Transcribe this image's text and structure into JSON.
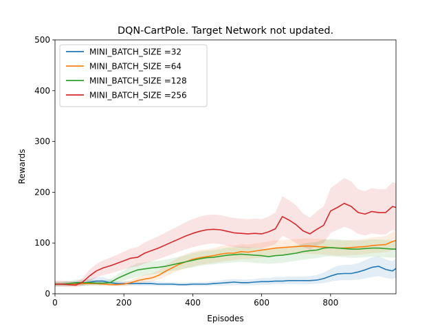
{
  "chart_data": {
    "type": "line",
    "title": "DQN-CartPole. Target Network not updated.",
    "xlabel": "Episodes",
    "ylabel": "Rewards",
    "xlim": [
      0,
      990
    ],
    "ylim": [
      0,
      500
    ],
    "xticks": [
      0,
      200,
      400,
      600,
      800
    ],
    "yticks": [
      0,
      100,
      200,
      300,
      400,
      500
    ],
    "grid": false,
    "legend_position": "upper-left",
    "x": [
      0,
      20,
      40,
      60,
      80,
      100,
      120,
      140,
      160,
      180,
      200,
      220,
      240,
      260,
      280,
      300,
      320,
      340,
      360,
      380,
      400,
      420,
      440,
      460,
      480,
      500,
      520,
      540,
      560,
      580,
      600,
      620,
      640,
      660,
      680,
      700,
      720,
      740,
      760,
      780,
      800,
      820,
      840,
      860,
      880,
      900,
      920,
      940,
      960,
      980,
      990
    ],
    "series": [
      {
        "name": "MINI_BATCH_SIZE =32",
        "color": "#1f77b4",
        "values": [
          19,
          19,
          19,
          20,
          21,
          23,
          25,
          25,
          22,
          20,
          20,
          20,
          20,
          20,
          20,
          19,
          19,
          19,
          18,
          18,
          19,
          19,
          19,
          20,
          21,
          22,
          23,
          22,
          22,
          23,
          24,
          24,
          25,
          25,
          26,
          26,
          26,
          26,
          27,
          30,
          35,
          39,
          40,
          40,
          43,
          47,
          52,
          54,
          48,
          45,
          50
        ],
        "lower": [
          15,
          15,
          15,
          15,
          16,
          17,
          18,
          18,
          17,
          16,
          16,
          16,
          16,
          16,
          16,
          15,
          15,
          15,
          15,
          15,
          15,
          15,
          15,
          16,
          16,
          17,
          17,
          17,
          17,
          17,
          18,
          18,
          19,
          19,
          19,
          19,
          19,
          19,
          20,
          21,
          24,
          26,
          27,
          27,
          28,
          30,
          33,
          35,
          31,
          29,
          32
        ],
        "upper": [
          24,
          24,
          24,
          25,
          26,
          29,
          33,
          33,
          28,
          25,
          25,
          25,
          25,
          25,
          25,
          24,
          23,
          23,
          22,
          22,
          23,
          23,
          23,
          25,
          26,
          28,
          29,
          28,
          28,
          29,
          31,
          31,
          33,
          33,
          34,
          34,
          34,
          35,
          37,
          42,
          49,
          55,
          57,
          57,
          60,
          66,
          72,
          74,
          68,
          64,
          70
        ]
      },
      {
        "name": "MINI_BATCH_SIZE =64",
        "color": "#ff7f0e",
        "values": [
          19,
          19,
          19,
          19,
          20,
          20,
          20,
          19,
          18,
          18,
          19,
          22,
          26,
          29,
          31,
          36,
          44,
          51,
          58,
          63,
          68,
          71,
          73,
          75,
          78,
          80,
          80,
          83,
          82,
          84,
          86,
          88,
          90,
          91,
          92,
          93,
          94,
          94,
          93,
          92,
          91,
          90,
          90,
          91,
          92,
          93,
          95,
          96,
          97,
          103,
          105
        ],
        "lower": [
          15,
          15,
          15,
          15,
          16,
          16,
          16,
          15,
          15,
          15,
          15,
          17,
          20,
          22,
          24,
          28,
          34,
          40,
          46,
          50,
          54,
          57,
          59,
          61,
          63,
          65,
          66,
          68,
          68,
          70,
          71,
          73,
          75,
          76,
          77,
          78,
          79,
          79,
          78,
          77,
          76,
          75,
          75,
          76,
          77,
          78,
          80,
          81,
          82,
          86,
          88
        ],
        "upper": [
          23,
          23,
          23,
          23,
          24,
          24,
          24,
          23,
          22,
          22,
          24,
          27,
          33,
          37,
          40,
          46,
          56,
          64,
          72,
          78,
          83,
          86,
          88,
          90,
          94,
          96,
          95,
          98,
          97,
          99,
          101,
          103,
          105,
          106,
          107,
          108,
          109,
          109,
          108,
          107,
          106,
          105,
          105,
          106,
          107,
          108,
          111,
          112,
          114,
          122,
          126
        ]
      },
      {
        "name": "MINI_BATCH_SIZE =128",
        "color": "#2ca02c",
        "values": [
          19,
          19,
          20,
          22,
          22,
          22,
          21,
          21,
          22,
          30,
          36,
          42,
          47,
          49,
          51,
          52,
          54,
          57,
          60,
          63,
          66,
          69,
          71,
          72,
          74,
          76,
          77,
          78,
          77,
          76,
          75,
          73,
          75,
          76,
          78,
          80,
          83,
          85,
          86,
          90,
          91,
          90,
          89,
          88,
          88,
          89,
          90,
          90,
          89,
          88,
          88
        ],
        "lower": [
          15,
          15,
          16,
          17,
          17,
          17,
          17,
          17,
          18,
          22,
          26,
          30,
          34,
          36,
          38,
          40,
          42,
          45,
          47,
          50,
          52,
          55,
          57,
          58,
          60,
          61,
          62,
          63,
          62,
          61,
          60,
          59,
          60,
          61,
          63,
          65,
          67,
          69,
          70,
          73,
          74,
          73,
          72,
          71,
          71,
          72,
          73,
          73,
          72,
          71,
          71
        ],
        "upper": [
          23,
          23,
          25,
          28,
          28,
          28,
          27,
          27,
          28,
          38,
          46,
          54,
          60,
          62,
          64,
          65,
          67,
          70,
          73,
          76,
          80,
          83,
          85,
          86,
          88,
          91,
          92,
          93,
          92,
          91,
          90,
          87,
          90,
          91,
          93,
          95,
          99,
          101,
          102,
          107,
          108,
          107,
          106,
          105,
          105,
          106,
          107,
          107,
          106,
          105,
          105
        ]
      },
      {
        "name": "MINI_BATCH_SIZE =256",
        "color": "#d62728",
        "values": [
          19,
          19,
          18,
          17,
          23,
          35,
          45,
          51,
          55,
          60,
          65,
          70,
          72,
          80,
          85,
          90,
          96,
          102,
          108,
          114,
          119,
          123,
          126,
          127,
          126,
          123,
          120,
          119,
          118,
          119,
          118,
          122,
          128,
          152,
          145,
          136,
          124,
          118,
          127,
          135,
          163,
          170,
          178,
          172,
          160,
          157,
          162,
          160,
          160,
          172,
          170
        ],
        "lower": [
          14,
          14,
          13,
          13,
          16,
          24,
          32,
          37,
          40,
          44,
          48,
          52,
          54,
          60,
          64,
          68,
          73,
          78,
          83,
          88,
          92,
          95,
          98,
          99,
          98,
          95,
          92,
          91,
          90,
          91,
          90,
          93,
          98,
          114,
          108,
          100,
          92,
          88,
          95,
          100,
          120,
          126,
          132,
          127,
          118,
          115,
          119,
          117,
          117,
          126,
          124
        ],
        "upper": [
          26,
          26,
          25,
          24,
          31,
          47,
          59,
          66,
          71,
          77,
          83,
          89,
          92,
          101,
          107,
          113,
          120,
          127,
          134,
          141,
          147,
          152,
          155,
          156,
          155,
          152,
          149,
          148,
          147,
          148,
          147,
          152,
          160,
          192,
          184,
          174,
          158,
          150,
          162,
          172,
          208,
          218,
          228,
          221,
          206,
          202,
          208,
          206,
          206,
          220,
          218
        ]
      }
    ]
  }
}
